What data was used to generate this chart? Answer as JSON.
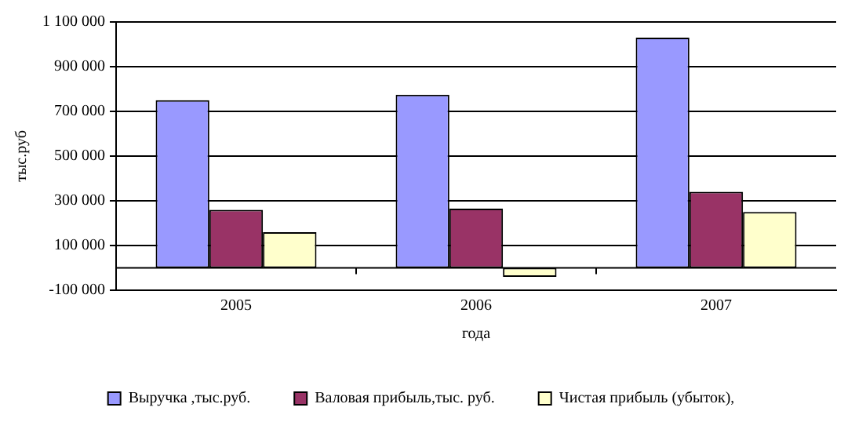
{
  "chart_data": {
    "type": "bar",
    "xlabel": "года",
    "ylabel": "тыс.руб",
    "categories": [
      "2005",
      "2006",
      "2007"
    ],
    "series": [
      {
        "name": "Выручка ,тыс.руб.",
        "color": "#9999ff",
        "values": [
          750000,
          775000,
          1030000
        ]
      },
      {
        "name": "Валовая прибыль,тыс. руб.",
        "color": "#993366",
        "values": [
          260000,
          265000,
          340000
        ]
      },
      {
        "name": "Чистая прибыль (убыток),",
        "color": "#ffffcc",
        "values": [
          160000,
          -40000,
          250000
        ]
      }
    ],
    "ylim": [
      -100000,
      1100000
    ],
    "yticks": [
      {
        "value": -100000,
        "label": "-100 000"
      },
      {
        "value": 100000,
        "label": "100 000"
      },
      {
        "value": 300000,
        "label": "300 000"
      },
      {
        "value": 500000,
        "label": "500 000"
      },
      {
        "value": 700000,
        "label": "700 000"
      },
      {
        "value": 900000,
        "label": "900 000"
      },
      {
        "value": 1100000,
        "label": "1 100 000"
      }
    ],
    "grid": "y",
    "legend": "bottom"
  }
}
